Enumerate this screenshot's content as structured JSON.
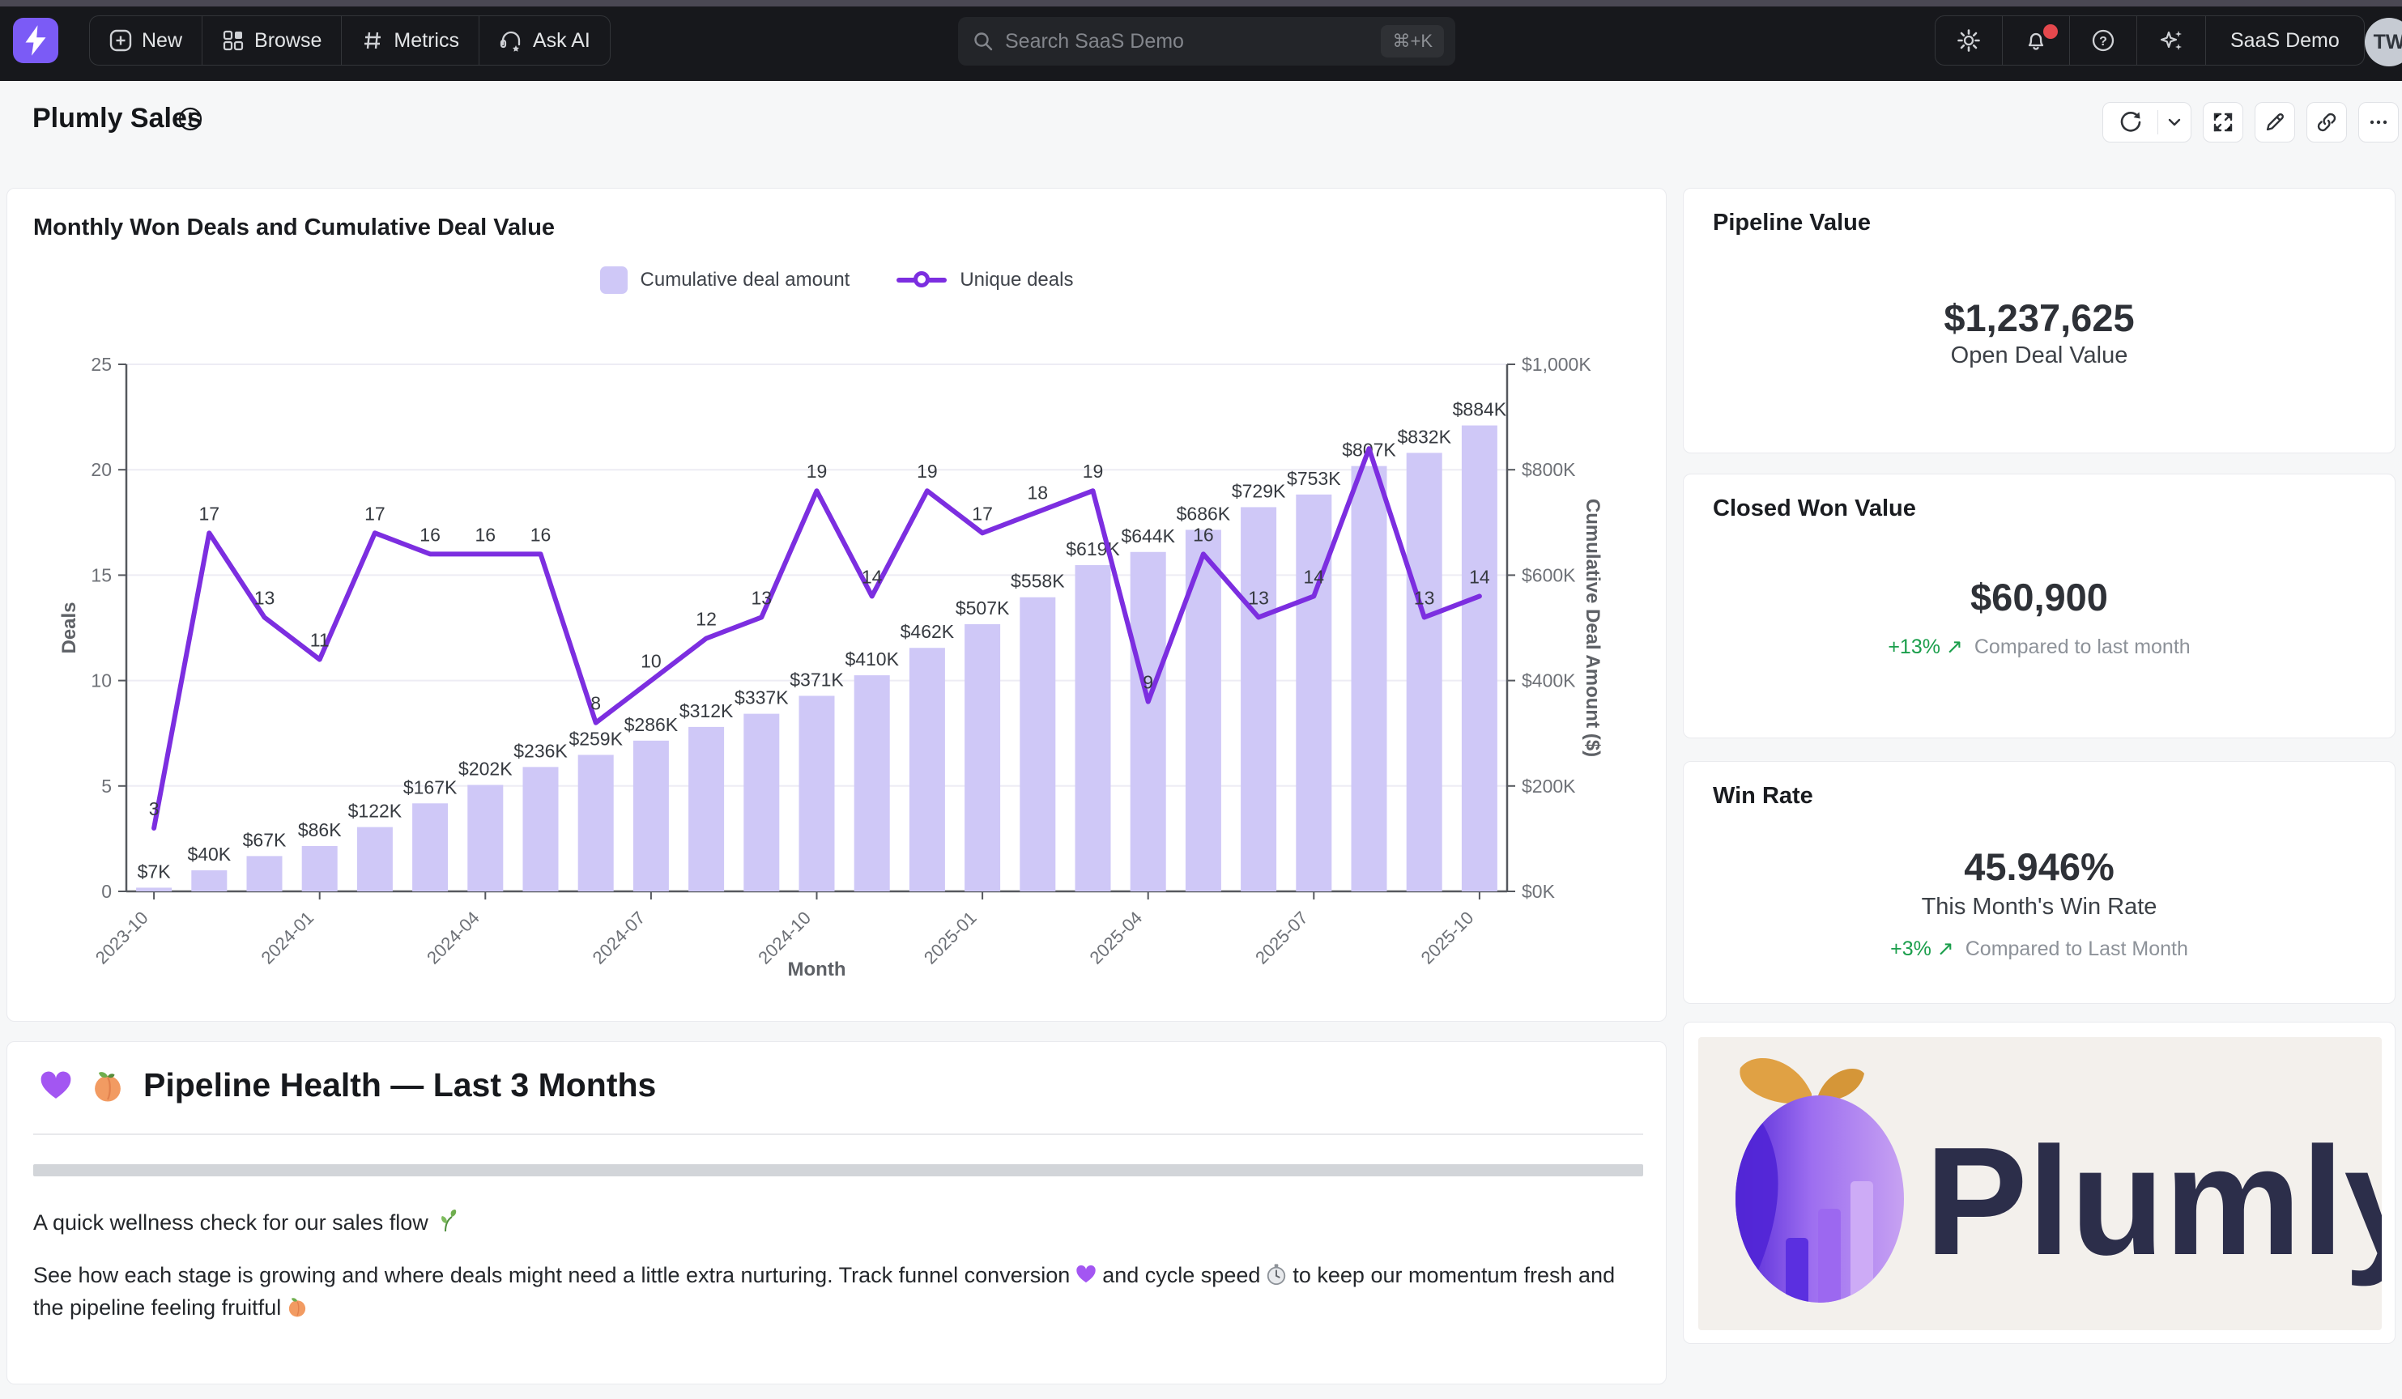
{
  "topbar": {
    "logo_icon": "lightning-bolt",
    "nav": [
      {
        "label": "New",
        "icon": "plus-square-icon"
      },
      {
        "label": "Browse",
        "icon": "grid-icon"
      },
      {
        "label": "Metrics",
        "icon": "hash-icon"
      },
      {
        "label": "Ask AI",
        "icon": "headset-star-icon"
      }
    ],
    "search": {
      "placeholder": "Search SaaS Demo",
      "shortcut": "⌘+K"
    },
    "right_icons": [
      "gear-icon",
      "bell-icon",
      "help-icon",
      "sparkles-icon"
    ],
    "notification_dot_color": "#e5484d",
    "workspace": "SaaS Demo",
    "avatar": "TW"
  },
  "header": {
    "title": "Plumly Sales",
    "toolbar_icons": [
      "refresh-icon",
      "chevron-down-icon",
      "expand-icon",
      "edit-icon",
      "link-icon",
      "ellipsis-icon"
    ]
  },
  "chart_card": {
    "title": "Monthly Won Deals and Cumulative Deal Value",
    "legend": [
      {
        "label": "Cumulative deal amount",
        "marker": "bar-swatch"
      },
      {
        "label": "Unique deals",
        "marker": "line-circle"
      }
    ]
  },
  "chart_data": {
    "type": "bar",
    "subtype": "bar+line dual axis",
    "x": [
      "2023-10",
      "2023-11",
      "2023-12",
      "2024-01",
      "2024-02",
      "2024-03",
      "2024-04",
      "2024-05",
      "2024-06",
      "2024-07",
      "2024-08",
      "2024-09",
      "2024-10",
      "2024-11",
      "2024-12",
      "2025-01",
      "2025-02",
      "2025-03",
      "2025-04",
      "2025-05",
      "2025-06",
      "2025-07",
      "2025-08",
      "2025-09",
      "2025-10"
    ],
    "x_tick_labels": [
      "2023-10",
      "2024-01",
      "2024-04",
      "2024-07",
      "2024-10",
      "2025-01",
      "2025-04",
      "2025-07",
      "2025-10"
    ],
    "series": [
      {
        "name": "Cumulative deal amount",
        "type": "bar",
        "axis": "right",
        "unit": "$K",
        "values": [
          7,
          40,
          67,
          86,
          122,
          167,
          202,
          236,
          259,
          286,
          312,
          337,
          371,
          410,
          462,
          507,
          558,
          619,
          644,
          686,
          729,
          753,
          807,
          832,
          884
        ],
        "labels": [
          "$7K",
          "$40K",
          "$67K",
          "$86K",
          "$122K",
          "$167K",
          "$202K",
          "$236K",
          "$259K",
          "$286K",
          "$312K",
          "$337K",
          "$371K",
          "$410K",
          "$462K",
          "$507K",
          "$558K",
          "$619K",
          "$644K",
          "$686K",
          "$729K",
          "$753K",
          "$807K",
          "$832K",
          "$884K"
        ]
      },
      {
        "name": "Unique deals",
        "type": "line",
        "axis": "left",
        "values": [
          3,
          17,
          13,
          11,
          17,
          16,
          16,
          16,
          8,
          10,
          12,
          13,
          19,
          14,
          19,
          17,
          18,
          19,
          9,
          16,
          13,
          14,
          21,
          13,
          14
        ],
        "hidden_label_indexes": [
          22
        ]
      }
    ],
    "left_axis": {
      "label": "Deals",
      "min": 0,
      "max": 25,
      "ticks": [
        0,
        5,
        10,
        15,
        20,
        25
      ]
    },
    "right_axis": {
      "label": "Cumulative Deal Amount ($)",
      "min": 0,
      "max": 1000,
      "ticks": [
        "$0K",
        "$200K",
        "$400K",
        "$600K",
        "$800K",
        "$1,000K"
      ]
    },
    "x_axis_label": "Month",
    "grid": true,
    "legend_position": "top-center",
    "colors": {
      "bar": "#cfc8f7",
      "line": "#7c2ee0"
    }
  },
  "kpis": [
    {
      "title": "Pipeline Value",
      "value": "$1,237,625",
      "subtitle": "Open Deal Value"
    },
    {
      "title": "Closed Won Value",
      "value": "$60,900",
      "delta": "+13%",
      "delta_arrow": "↗",
      "compare": "Compared to last month"
    },
    {
      "title": "Win Rate",
      "value": "45.946%",
      "subtitle": "This Month's Win Rate",
      "delta": "+3%",
      "delta_arrow": "↗",
      "compare": "Compared to Last Month"
    }
  ],
  "note": {
    "heading_emojis": "💜🍑",
    "heading": "Pipeline Health — Last 3 Months",
    "para1": {
      "text": "A quick wellness check for our sales flow",
      "emoji": "🌿"
    },
    "para2": {
      "seg1": "See how each stage is growing and where deals might need a little extra nurturing. Track funnel conversion",
      "emoji1": "💜",
      "seg2": "and cycle speed",
      "emoji2": "⏱",
      "seg3": "to keep our momentum fresh and the pipeline feeling fruitful",
      "emoji3": "🍑"
    }
  },
  "logo": {
    "brand": "Plumly"
  }
}
